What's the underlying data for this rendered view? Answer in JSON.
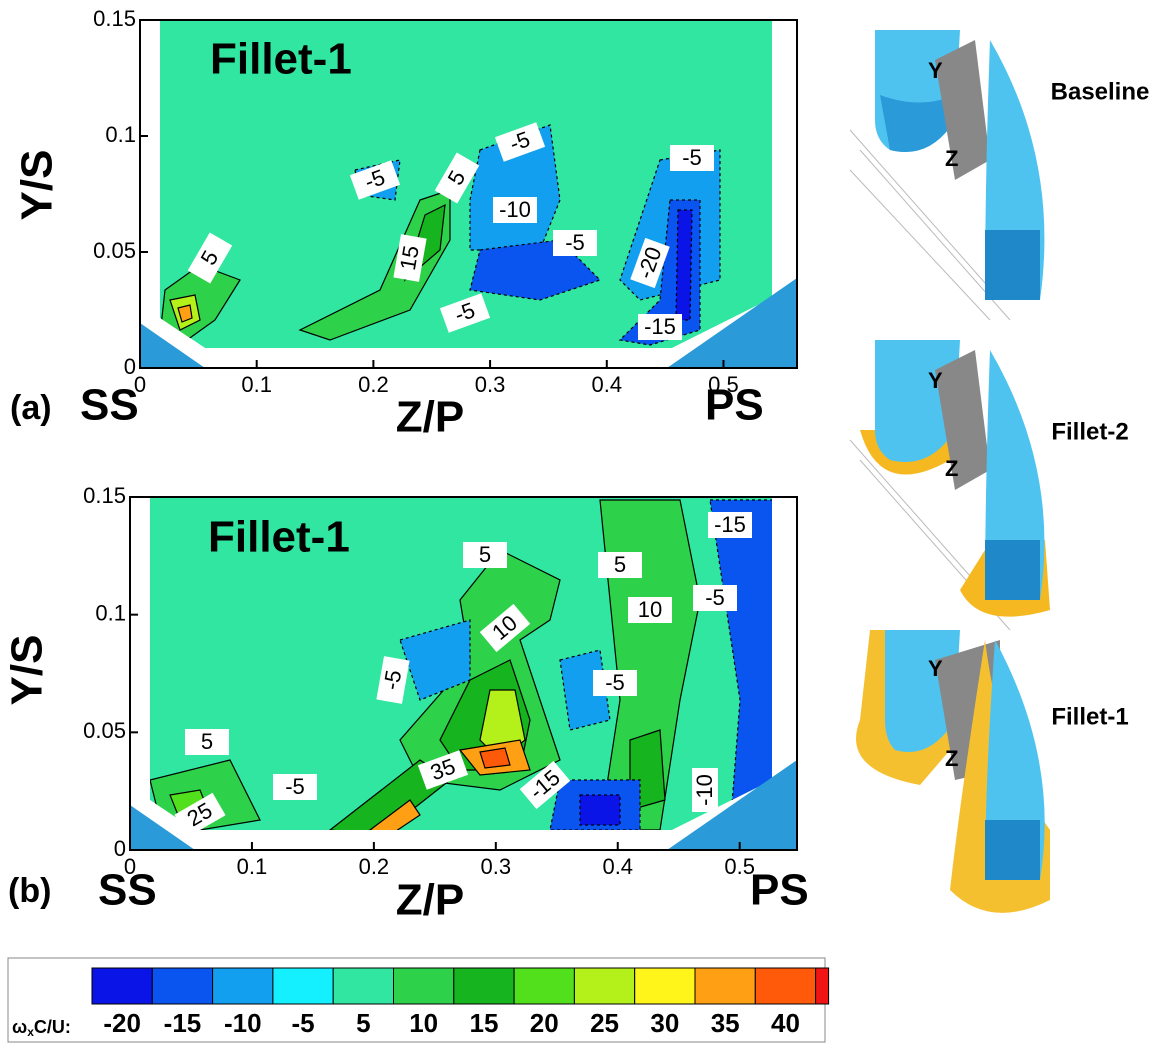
{
  "panels": [
    {
      "panel_label": "(a)",
      "title": "Fillet-1",
      "xlabel": "Z/P",
      "ylabel": "Y/S",
      "left_label": "SS",
      "right_label": "PS",
      "xlim": [
        0,
        0.563
      ],
      "ylim": [
        0,
        0.15
      ],
      "xticks": [
        0,
        0.1,
        0.2,
        0.3,
        0.4,
        0.5
      ],
      "yticks": [
        0,
        0.05,
        0.1,
        0.15
      ],
      "contour_labels": [
        5,
        -5,
        5,
        -5,
        -10,
        15,
        -5,
        -20,
        -5,
        -5,
        -15
      ]
    },
    {
      "panel_label": "(b)",
      "title": "Fillet-1",
      "xlabel": "Z/P",
      "ylabel": "Y/S",
      "left_label": "SS",
      "right_label": "PS",
      "xlim": [
        0,
        0.547
      ],
      "ylim": [
        0,
        0.15
      ],
      "xticks": [
        0,
        0.1,
        0.2,
        0.3,
        0.4,
        0.5
      ],
      "yticks": [
        0,
        0.05,
        0.1,
        0.15
      ],
      "contour_labels": [
        5,
        10,
        -5,
        -5,
        10,
        5,
        -5,
        -15,
        5,
        35,
        -15,
        -5,
        25,
        -10
      ]
    }
  ],
  "colorbar": {
    "label_symbol": "ω",
    "label_sub": "x",
    "label_rest": "C/U:",
    "levels": [
      -20,
      -15,
      -10,
      -5,
      5,
      10,
      15,
      20,
      25,
      30,
      35,
      40
    ],
    "colors": [
      "#0a14e6",
      "#0a55f0",
      "#129ff0",
      "#14f0ff",
      "#30e6a0",
      "#2ed24a",
      "#16b41e",
      "#52e01c",
      "#b4f01a",
      "#fff51a",
      "#ffa014",
      "#ff5a0a",
      "#f01414"
    ]
  },
  "geometry": [
    {
      "label": "Baseline",
      "axis_y": "Y",
      "axis_z": "Z"
    },
    {
      "label": "Fillet-2",
      "axis_y": "Y",
      "axis_z": "Z"
    },
    {
      "label": "Fillet-1",
      "axis_y": "Y",
      "axis_z": "Z"
    }
  ]
}
